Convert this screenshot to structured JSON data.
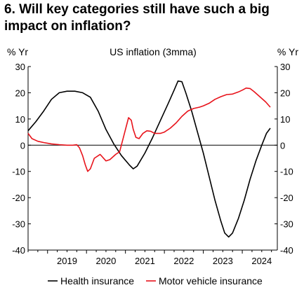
{
  "title": "6. Will key categories still have such a big impact on inflation?",
  "chart_data": {
    "type": "line",
    "subtitle": "US inflation (3mma)",
    "ylabel_left": "% Yr",
    "ylabel_right": "% Yr",
    "ylim": [
      -40,
      30
    ],
    "yticks": [
      -40,
      -30,
      -20,
      -10,
      0,
      10,
      20,
      30
    ],
    "xlim": [
      2018.5,
      2024.9
    ],
    "xticks": [
      {
        "label": "2019",
        "value": 2019.0
      },
      {
        "label": "2020",
        "value": 2020.0
      },
      {
        "label": "2021",
        "value": 2021.0
      },
      {
        "label": "2022",
        "value": 2022.0
      },
      {
        "label": "2023",
        "value": 2023.0
      },
      {
        "label": "2024",
        "value": 2024.0
      }
    ],
    "grid": false,
    "zero_line": true,
    "legend_position": "bottom",
    "series": [
      {
        "name": "Health insurance",
        "color": "#000000",
        "points": [
          [
            2018.5,
            5.5
          ],
          [
            2018.7,
            9
          ],
          [
            2018.9,
            13
          ],
          [
            2019.1,
            17.5
          ],
          [
            2019.3,
            20
          ],
          [
            2019.5,
            20.6
          ],
          [
            2019.7,
            20.6
          ],
          [
            2019.9,
            20
          ],
          [
            2020.1,
            18.3
          ],
          [
            2020.3,
            13
          ],
          [
            2020.5,
            6
          ],
          [
            2020.7,
            0.5
          ],
          [
            2020.9,
            -4
          ],
          [
            2021.1,
            -7.5
          ],
          [
            2021.2,
            -9
          ],
          [
            2021.3,
            -8
          ],
          [
            2021.5,
            -3
          ],
          [
            2021.7,
            3
          ],
          [
            2021.9,
            9.5
          ],
          [
            2022.1,
            16
          ],
          [
            2022.25,
            21
          ],
          [
            2022.35,
            24.5
          ],
          [
            2022.45,
            24.2
          ],
          [
            2022.55,
            20
          ],
          [
            2022.7,
            13
          ],
          [
            2022.85,
            5
          ],
          [
            2023.0,
            -3
          ],
          [
            2023.15,
            -12
          ],
          [
            2023.3,
            -21
          ],
          [
            2023.45,
            -29
          ],
          [
            2023.55,
            -33.5
          ],
          [
            2023.65,
            -35
          ],
          [
            2023.75,
            -33.5
          ],
          [
            2023.9,
            -28
          ],
          [
            2024.05,
            -21
          ],
          [
            2024.2,
            -13
          ],
          [
            2024.35,
            -6
          ],
          [
            2024.5,
            0
          ],
          [
            2024.62,
            4.5
          ],
          [
            2024.72,
            6.5
          ]
        ]
      },
      {
        "name": "Motor vehicle insurance",
        "color": "#e8131b",
        "points": [
          [
            2018.5,
            4.5
          ],
          [
            2018.6,
            2.5
          ],
          [
            2018.75,
            1.5
          ],
          [
            2018.9,
            1
          ],
          [
            2019.1,
            0.5
          ],
          [
            2019.3,
            0.2
          ],
          [
            2019.5,
            0
          ],
          [
            2019.65,
            0
          ],
          [
            2019.75,
            0.2
          ],
          [
            2019.82,
            -1
          ],
          [
            2019.9,
            -4
          ],
          [
            2019.97,
            -7.5
          ],
          [
            2020.03,
            -10
          ],
          [
            2020.1,
            -9
          ],
          [
            2020.2,
            -5
          ],
          [
            2020.35,
            -3.5
          ],
          [
            2020.5,
            -6
          ],
          [
            2020.6,
            -5.5
          ],
          [
            2020.75,
            -3.5
          ],
          [
            2020.85,
            -2.5
          ],
          [
            2020.93,
            2
          ],
          [
            2021.0,
            6
          ],
          [
            2021.08,
            10.5
          ],
          [
            2021.15,
            9.5
          ],
          [
            2021.2,
            6
          ],
          [
            2021.27,
            3
          ],
          [
            2021.35,
            2.5
          ],
          [
            2021.45,
            4.5
          ],
          [
            2021.55,
            5.5
          ],
          [
            2021.65,
            5.3
          ],
          [
            2021.75,
            4.5
          ],
          [
            2021.9,
            4.5
          ],
          [
            2022.0,
            5
          ],
          [
            2022.15,
            6.5
          ],
          [
            2022.3,
            8.5
          ],
          [
            2022.45,
            11
          ],
          [
            2022.6,
            13
          ],
          [
            2022.75,
            14
          ],
          [
            2022.9,
            14.5
          ],
          [
            2023.0,
            15
          ],
          [
            2023.15,
            16
          ],
          [
            2023.3,
            17.5
          ],
          [
            2023.45,
            18.5
          ],
          [
            2023.6,
            19.3
          ],
          [
            2023.75,
            19.5
          ],
          [
            2023.9,
            20.3
          ],
          [
            2024.0,
            21
          ],
          [
            2024.1,
            21.8
          ],
          [
            2024.2,
            21.6
          ],
          [
            2024.3,
            20.5
          ],
          [
            2024.45,
            18.5
          ],
          [
            2024.6,
            16.5
          ],
          [
            2024.72,
            14.5
          ]
        ]
      }
    ]
  }
}
